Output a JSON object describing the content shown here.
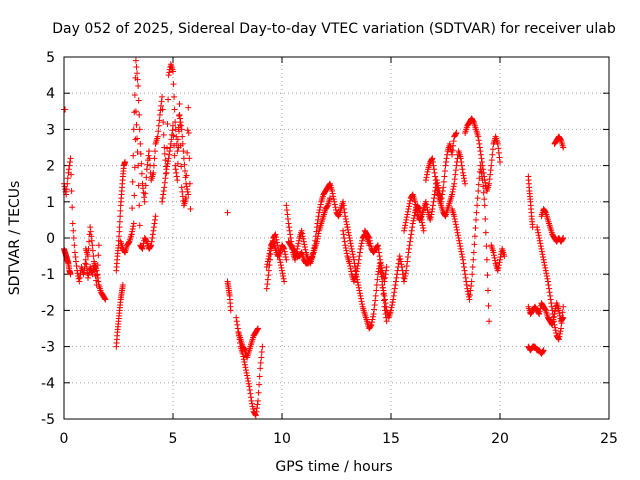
{
  "chart_data": {
    "type": "scatter",
    "title": "Day 052 of 2025, Sidereal Day-to-day VTEC variation (SDTVAR) for receiver ulab",
    "xlabel": "GPS time / hours",
    "ylabel": "SDTVAR / TECUs",
    "xlim": [
      0,
      25
    ],
    "ylim": [
      -5,
      5
    ],
    "xticks": [
      0,
      5,
      10,
      15,
      20,
      25
    ],
    "yticks": [
      -5,
      -4,
      -3,
      -2,
      -1,
      0,
      1,
      2,
      3,
      4,
      5
    ],
    "grid": true,
    "legend": "none",
    "marker": "+",
    "series": [
      {
        "name": "SDTVAR",
        "color": "#ff0000",
        "segments": [
          {
            "x": [
              0.0,
              0.1,
              0.2,
              0.3,
              0.4,
              0.5,
              0.6,
              0.7,
              0.8,
              0.9,
              1.0,
              1.1,
              1.2,
              1.3,
              1.4,
              1.5,
              1.6,
              1.7,
              1.8,
              1.9
            ],
            "y": [
              1.5,
              1.2,
              1.8,
              2.2,
              0.4,
              -0.4,
              -0.9,
              -1.2,
              -0.8,
              -1.0,
              -0.6,
              -1.1,
              -0.8,
              -1.0,
              -0.7,
              -0.9,
              -1.3,
              -1.5,
              -1.6,
              -1.7
            ]
          },
          {
            "x": [
              0.0,
              0.05,
              0.1,
              0.15,
              0.2,
              0.25,
              0.3
            ],
            "y": [
              -0.3,
              -0.4,
              -0.5,
              -0.6,
              -0.7,
              -0.9,
              -1.0
            ]
          },
          {
            "x": [
              0.0,
              0.05
            ],
            "y": [
              3.55,
              3.55
            ]
          },
          {
            "x": [
              1.0,
              1.1,
              1.2,
              1.3,
              1.4,
              1.5,
              1.6
            ],
            "y": [
              -0.3,
              -0.5,
              0.3,
              -0.2,
              -0.8,
              -1.3,
              -0.2
            ]
          },
          {
            "x": [
              2.4,
              2.45,
              2.5,
              2.55,
              2.6,
              2.65,
              2.7
            ],
            "y": [
              -3.0,
              -2.6,
              -2.3,
              -2.0,
              -1.7,
              -1.5,
              -1.3
            ]
          },
          {
            "x": [
              2.4,
              2.45,
              2.5,
              2.55,
              2.6,
              2.65,
              2.7,
              2.75,
              2.8
            ],
            "y": [
              -0.9,
              -0.5,
              -0.2,
              0.3,
              0.9,
              1.3,
              1.7,
              2.0,
              2.1
            ]
          },
          {
            "x": [
              2.6,
              2.7,
              2.8,
              2.9,
              3.0,
              3.1,
              3.2,
              3.3,
              3.4,
              3.5,
              3.6,
              3.7,
              3.8,
              3.9,
              4.0,
              4.1,
              4.2,
              4.3,
              4.4,
              4.5,
              4.6,
              4.7,
              4.8,
              4.9,
              5.0,
              5.1,
              5.2,
              5.3,
              5.4,
              5.5,
              5.6,
              5.7,
              5.8
            ],
            "y": [
              -0.1,
              -0.3,
              -0.4,
              -0.2,
              -0.1,
              0.1,
              3.0,
              4.9,
              4.2,
              2.6,
              1.5,
              1.0,
              1.9,
              2.4,
              1.6,
              1.8,
              2.6,
              2.8,
              3.4,
              3.9,
              2.5,
              1.8,
              4.5,
              4.8,
              4.6,
              3.2,
              2.4,
              3.7,
              1.4,
              0.9,
              1.1,
              3.6,
              0.8
            ]
          },
          {
            "x": [
              3.1,
              3.2,
              3.3,
              3.4,
              3.5,
              3.6,
              3.7,
              3.8,
              3.9,
              4.0,
              4.1,
              4.2
            ],
            "y": [
              0.1,
              0.4,
              3.5,
              2.0,
              -0.2,
              -0.3,
              0.0,
              -0.1,
              -0.3,
              -0.2,
              0.2,
              0.6
            ]
          },
          {
            "x": [
              4.5,
              4.6,
              4.7,
              4.8,
              4.9,
              5.0,
              5.1,
              5.2,
              5.3,
              5.4,
              5.5,
              5.6,
              5.7
            ],
            "y": [
              1.0,
              1.4,
              1.9,
              2.2,
              2.6,
              3.1,
              2.0,
              1.6,
              3.4,
              3.0,
              2.2,
              1.5,
              1.2
            ]
          },
          {
            "x": [
              7.5
            ],
            "y": [
              0.7
            ]
          },
          {
            "x": [
              7.5,
              7.55,
              7.6,
              7.65
            ],
            "y": [
              -1.2,
              -1.4,
              -1.6,
              -2.0
            ]
          },
          {
            "x": [
              7.9,
              8.0,
              8.1,
              8.2,
              8.3,
              8.4,
              8.5,
              8.6,
              8.7,
              8.8,
              8.9,
              9.0,
              9.1
            ],
            "y": [
              -2.2,
              -2.6,
              -3.0,
              -3.2,
              -3.5,
              -3.8,
              -4.1,
              -4.5,
              -4.8,
              -4.9,
              -4.5,
              -3.6,
              -3.0
            ]
          },
          {
            "x": [
              8.0,
              8.1,
              8.2,
              8.3,
              8.4,
              8.5,
              8.6,
              8.7,
              8.8,
              8.9
            ],
            "y": [
              -2.6,
              -2.8,
              -3.0,
              -3.1,
              -3.3,
              -3.1,
              -2.9,
              -2.7,
              -2.6,
              -2.5
            ]
          },
          {
            "x": [
              9.3,
              9.4,
              9.5,
              9.6,
              9.7,
              9.8,
              9.9,
              10.0,
              10.1
            ],
            "y": [
              -1.4,
              -0.9,
              -0.3,
              0.0,
              0.1,
              -0.2,
              -0.6,
              -0.9,
              -1.2
            ]
          },
          {
            "x": [
              9.3,
              9.4,
              9.5,
              9.6,
              9.7,
              9.8,
              9.9,
              10.0,
              10.1,
              10.2
            ],
            "y": [
              -0.8,
              -0.5,
              -0.2,
              -0.1,
              -0.3,
              -0.5,
              -0.4,
              -0.2,
              -0.3,
              -0.6
            ]
          },
          {
            "x": [
              10.2,
              10.3,
              10.4,
              10.5,
              10.6,
              10.7,
              10.8,
              10.9,
              11.0,
              11.1,
              11.2,
              11.3,
              11.4,
              11.5,
              11.6,
              11.7,
              11.8,
              11.9,
              12.0,
              12.1,
              12.2,
              12.3,
              12.4,
              12.5,
              12.6,
              12.7,
              12.8,
              12.9,
              13.0
            ],
            "y": [
              0.9,
              0.4,
              0.0,
              -0.4,
              -0.6,
              -0.3,
              0.0,
              0.2,
              -0.1,
              -0.4,
              -0.6,
              -0.7,
              -0.5,
              -0.2,
              0.3,
              0.7,
              1.0,
              1.2,
              1.3,
              1.4,
              1.5,
              1.3,
              1.0,
              0.7,
              0.6,
              0.8,
              1.0,
              0.6,
              0.3
            ]
          },
          {
            "x": [
              10.3,
              10.4,
              10.5,
              10.6,
              10.7,
              10.8,
              10.9,
              11.0,
              11.1,
              11.2,
              11.3,
              11.4,
              11.5,
              11.6,
              11.7,
              11.8,
              11.9,
              12.0,
              12.1,
              12.2
            ],
            "y": [
              -0.1,
              -0.2,
              -0.3,
              -0.4,
              -0.5,
              -0.5,
              -0.4,
              -0.6,
              -0.7,
              -0.7,
              -0.6,
              -0.5,
              -0.3,
              -0.1,
              0.2,
              0.4,
              0.6,
              0.8,
              0.9,
              1.1
            ]
          },
          {
            "x": [
              13.0,
              13.1,
              13.2,
              13.3,
              13.4,
              13.5,
              13.6,
              13.7,
              13.8,
              13.9,
              14.0,
              14.1,
              14.2,
              14.3,
              14.4,
              14.5,
              14.6,
              14.7,
              14.8
            ],
            "y": [
              0.3,
              0.0,
              -0.3,
              -0.6,
              -1.0,
              -1.3,
              -1.6,
              -1.9,
              -2.1,
              -2.3,
              -2.5,
              -2.4,
              -2.1,
              -1.6,
              -1.0,
              -0.7,
              -1.2,
              -1.9,
              -2.3
            ]
          },
          {
            "x": [
              12.8,
              12.9,
              13.0,
              13.1,
              13.2,
              13.3,
              13.4,
              13.5,
              13.6,
              13.7,
              13.8,
              13.9,
              14.0
            ],
            "y": [
              0.2,
              -0.2,
              -0.5,
              -0.7,
              -1.0,
              -1.2,
              -1.0,
              -0.7,
              -0.3,
              0.0,
              0.1,
              0.0,
              -0.2
            ]
          },
          {
            "x": [
              13.8,
              13.9,
              14.0,
              14.1,
              14.2,
              14.3,
              14.4,
              14.5,
              14.6,
              14.7,
              14.8
            ],
            "y": [
              0.2,
              0.1,
              0.0,
              -0.3,
              -0.4,
              -0.3,
              -0.2,
              -0.6,
              -0.9,
              -1.2,
              -0.8
            ]
          },
          {
            "x": [
              14.6,
              14.7,
              14.8,
              14.9,
              15.0,
              15.1,
              15.2,
              15.3,
              15.4,
              15.5,
              15.6,
              15.7,
              15.8,
              15.9,
              16.0,
              16.1,
              16.2,
              16.3,
              16.4,
              16.5
            ],
            "y": [
              -1.3,
              -1.6,
              -2.0,
              -2.2,
              -2.0,
              -1.7,
              -1.3,
              -0.9,
              -0.5,
              -0.8,
              -1.2,
              -0.9,
              -0.4,
              0.0,
              0.4,
              0.7,
              0.9,
              0.8,
              0.5,
              0.2
            ]
          },
          {
            "x": [
              15.6,
              15.7,
              15.8,
              15.9,
              16.0,
              16.1,
              16.2,
              16.3,
              16.4,
              16.5,
              16.6,
              16.7,
              16.8,
              16.9,
              17.0,
              17.1,
              17.2,
              17.3,
              17.4,
              17.5,
              17.6,
              17.7,
              17.8,
              17.9,
              18.0
            ],
            "y": [
              0.2,
              0.5,
              0.8,
              1.1,
              1.2,
              1.0,
              0.7,
              0.5,
              0.6,
              0.8,
              1.0,
              0.7,
              0.5,
              0.8,
              1.2,
              1.6,
              1.3,
              1.0,
              1.4,
              2.0,
              2.4,
              2.6,
              2.3,
              2.8,
              2.9
            ]
          },
          {
            "x": [
              16.6,
              16.7,
              16.8,
              16.9,
              17.0,
              17.1,
              17.2,
              17.3,
              17.4,
              17.5,
              17.6,
              17.7,
              17.8,
              17.9,
              18.0,
              18.1,
              18.2,
              18.3,
              18.4
            ],
            "y": [
              1.6,
              1.9,
              2.1,
              2.2,
              1.8,
              1.4,
              1.1,
              0.9,
              0.7,
              0.6,
              0.8,
              1.0,
              1.2,
              1.5,
              2.0,
              2.4,
              2.2,
              1.8,
              1.5
            ]
          },
          {
            "x": [
              17.8,
              17.9,
              18.0,
              18.1,
              18.2,
              18.3,
              18.4,
              18.5,
              18.6,
              18.7,
              18.8,
              18.9,
              19.0,
              19.1,
              19.2,
              19.3,
              19.4,
              19.5
            ],
            "y": [
              0.8,
              0.6,
              0.3,
              0.0,
              -0.3,
              -0.6,
              -1.0,
              -1.4,
              -1.7,
              -1.2,
              -0.4,
              0.5,
              1.3,
              2.0,
              1.6,
              0.9,
              -0.6,
              -2.3
            ]
          },
          {
            "x": [
              18.4,
              18.5,
              18.6,
              18.7,
              18.8,
              18.9,
              19.0,
              19.1,
              19.2,
              19.3,
              19.4,
              19.5,
              19.6,
              19.7,
              19.8,
              19.9,
              20.0
            ],
            "y": [
              2.9,
              3.1,
              3.2,
              3.3,
              3.2,
              3.0,
              2.8,
              2.4,
              2.0,
              1.6,
              1.3,
              1.5,
              2.0,
              2.6,
              2.8,
              2.6,
              2.1
            ]
          },
          {
            "x": [
              19.6,
              19.7,
              19.8,
              19.9,
              20.0,
              20.1,
              20.2
            ],
            "y": [
              -0.2,
              -0.4,
              -0.7,
              -0.9,
              -0.6,
              -0.3,
              -0.5
            ]
          },
          {
            "x": [
              21.3,
              21.35,
              21.4,
              21.45,
              21.5
            ],
            "y": [
              1.7,
              1.3,
              1.0,
              0.6,
              0.3
            ]
          },
          {
            "x": [
              21.3,
              21.4,
              21.5,
              21.6,
              21.7,
              21.8,
              21.9,
              22.0,
              22.1,
              22.2,
              22.3,
              22.4,
              22.5,
              22.6,
              22.7,
              22.8,
              22.9
            ],
            "y": [
              -1.9,
              -2.1,
              -2.0,
              -1.9,
              -2.0,
              -2.1,
              -1.8,
              -1.9,
              -2.0,
              -2.2,
              -2.3,
              -2.4,
              -2.1,
              -1.8,
              -2.0,
              -2.3,
              -2.2
            ]
          },
          {
            "x": [
              21.3,
              21.4,
              21.5,
              21.6,
              21.7,
              21.8,
              21.9,
              22.0
            ],
            "y": [
              -3.0,
              -3.1,
              -3.0,
              -3.0,
              -3.1,
              -3.1,
              -3.2,
              -3.1
            ]
          },
          {
            "x": [
              21.7,
              21.8,
              21.9,
              22.0,
              22.1,
              22.2,
              22.3,
              22.4,
              22.5,
              22.6,
              22.7,
              22.8,
              22.9
            ],
            "y": [
              0.3,
              0.0,
              -0.3,
              -0.6,
              -0.9,
              -1.2,
              -1.6,
              -2.0,
              -2.4,
              -2.7,
              -2.8,
              -2.5,
              -1.9
            ]
          },
          {
            "x": [
              21.9,
              22.0,
              22.1,
              22.2,
              22.3,
              22.4,
              22.5,
              22.6,
              22.7,
              22.8,
              22.9
            ],
            "y": [
              0.6,
              0.8,
              0.7,
              0.5,
              0.3,
              0.1,
              0.0,
              -0.1,
              0.0,
              -0.1,
              0.0
            ]
          },
          {
            "x": [
              22.5,
              22.6,
              22.7,
              22.8,
              22.9
            ],
            "y": [
              2.6,
              2.7,
              2.8,
              2.7,
              2.5
            ]
          }
        ]
      }
    ]
  }
}
